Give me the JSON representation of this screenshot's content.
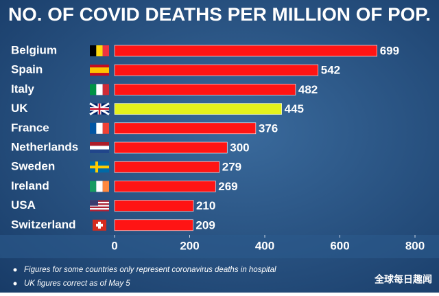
{
  "chart_data": {
    "type": "bar",
    "orientation": "horizontal",
    "title": "NO. OF COVID DEATHS PER MILLION OF POP.",
    "categories": [
      "Belgium",
      "Spain",
      "Italy",
      "UK",
      "France",
      "Netherlands",
      "Sweden",
      "Ireland",
      "USA",
      "Switzerland"
    ],
    "values": [
      699,
      542,
      482,
      445,
      376,
      300,
      279,
      269,
      210,
      209
    ],
    "colors": [
      "#ff1414",
      "#ff1414",
      "#ff1414",
      "#e4f21c",
      "#ff1414",
      "#ff1414",
      "#ff1414",
      "#ff1414",
      "#ff1414",
      "#ff1414"
    ],
    "xlim": [
      0,
      800
    ],
    "xticks": [
      0,
      200,
      400,
      600,
      800
    ],
    "notes": [
      "Figures for some countries only represent coronavirus deaths in hospital",
      "UK figures correct as of May 5"
    ],
    "watermark": "全球每日趣闻"
  }
}
